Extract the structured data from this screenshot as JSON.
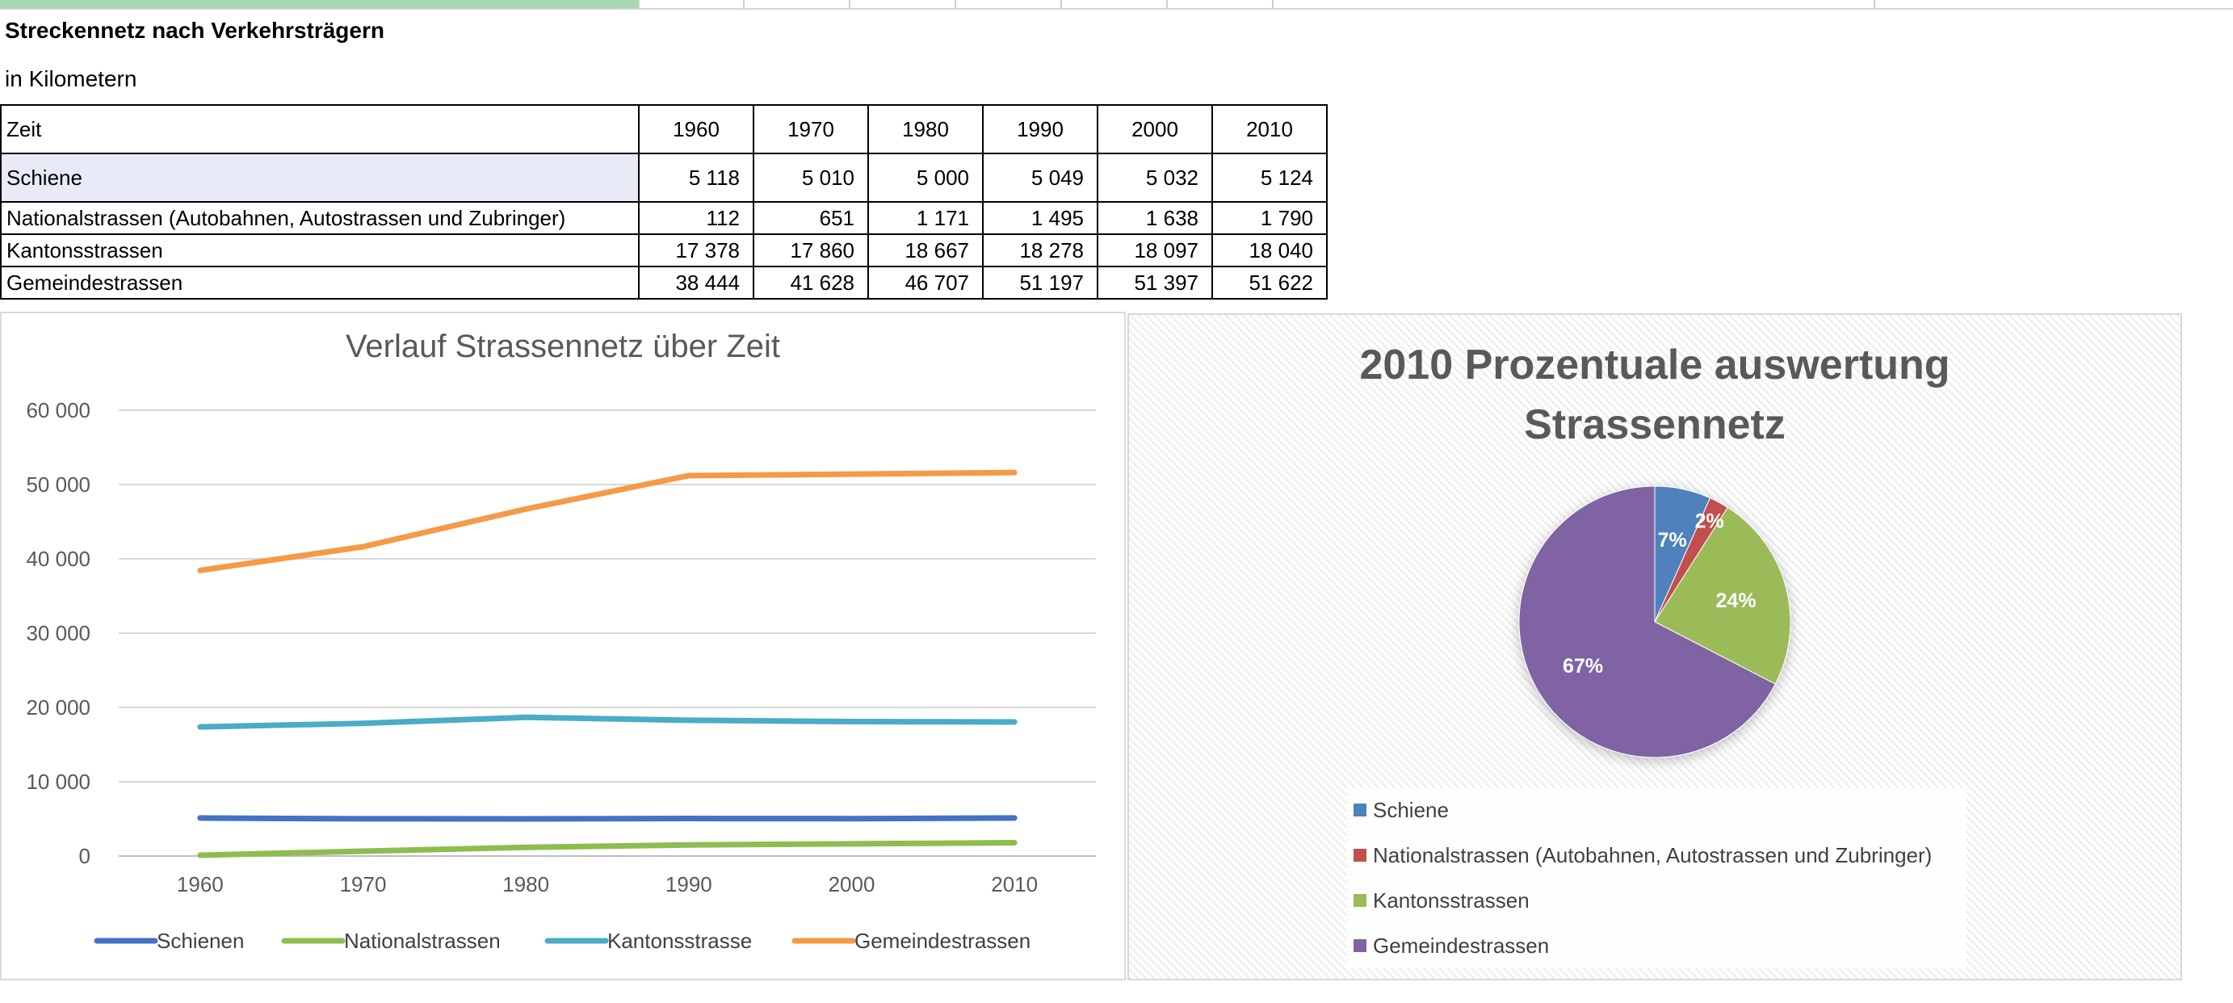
{
  "sheet": {
    "title": "Streckennetz nach Verkehrsträgern",
    "subtitle": "in Kilometern"
  },
  "table": {
    "header_label": "Zeit",
    "years": [
      "1960",
      "1970",
      "1980",
      "1990",
      "2000",
      "2010"
    ],
    "rows": [
      {
        "label": "Schiene",
        "values": [
          "5 118",
          "5 010",
          "5 000",
          "5 049",
          "5 032",
          "5 124"
        ]
      },
      {
        "label": "Nationalstrassen (Autobahnen, Autostrassen und Zubringer)",
        "values": [
          "112",
          "651",
          "1 171",
          "1 495",
          "1 638",
          "1 790"
        ]
      },
      {
        "label": "Kantonsstrassen",
        "values": [
          "17 378",
          "17 860",
          "18 667",
          "18 278",
          "18 097",
          "18 040"
        ]
      },
      {
        "label": "Gemeindestrassen",
        "values": [
          "38 444",
          "41 628",
          "46 707",
          "51 197",
          "51 397",
          "51 622"
        ]
      }
    ]
  },
  "chart_data": [
    {
      "type": "line",
      "title": "Verlauf Strassennetz über Zeit",
      "categories": [
        "1960",
        "1970",
        "1980",
        "1990",
        "2000",
        "2010"
      ],
      "ylim": [
        0,
        60000
      ],
      "yticks": [
        0,
        10000,
        20000,
        30000,
        40000,
        50000,
        60000
      ],
      "ytick_labels": [
        "0",
        "10 000",
        "20 000",
        "30 000",
        "40 000",
        "50 000",
        "60 000"
      ],
      "grid": true,
      "legend": "bottom",
      "series": [
        {
          "name": "Schienen",
          "color": "#4472c4",
          "values": [
            5118,
            5010,
            5000,
            5049,
            5032,
            5124
          ]
        },
        {
          "name": "Nationalstrassen",
          "color": "#8fbc4f",
          "values": [
            112,
            651,
            1171,
            1495,
            1638,
            1790
          ]
        },
        {
          "name": "Kantonsstrasse",
          "color": "#4bacc6",
          "values": [
            17378,
            17860,
            18667,
            18278,
            18097,
            18040
          ]
        },
        {
          "name": "Gemeindestrassen",
          "color": "#f59a45",
          "values": [
            38444,
            41628,
            46707,
            51197,
            51397,
            51622
          ]
        }
      ]
    },
    {
      "type": "pie",
      "title_lines": [
        "2010 Prozentuale auswertung",
        "Strassennetz"
      ],
      "legend": "bottom",
      "slices": [
        {
          "name": "Schiene",
          "value": 5124,
          "label": "7%",
          "color": "#4f81bd"
        },
        {
          "name": "Nationalstrassen (Autobahnen, Autostrassen und Zubringer)",
          "value": 1790,
          "label": "2%",
          "color": "#c0504d"
        },
        {
          "name": "Kantonsstrassen",
          "value": 18040,
          "label": "24%",
          "color": "#9bbb59"
        },
        {
          "name": "Gemeindestrassen",
          "value": 51622,
          "label": "67%",
          "color": "#8064a2"
        }
      ]
    }
  ]
}
